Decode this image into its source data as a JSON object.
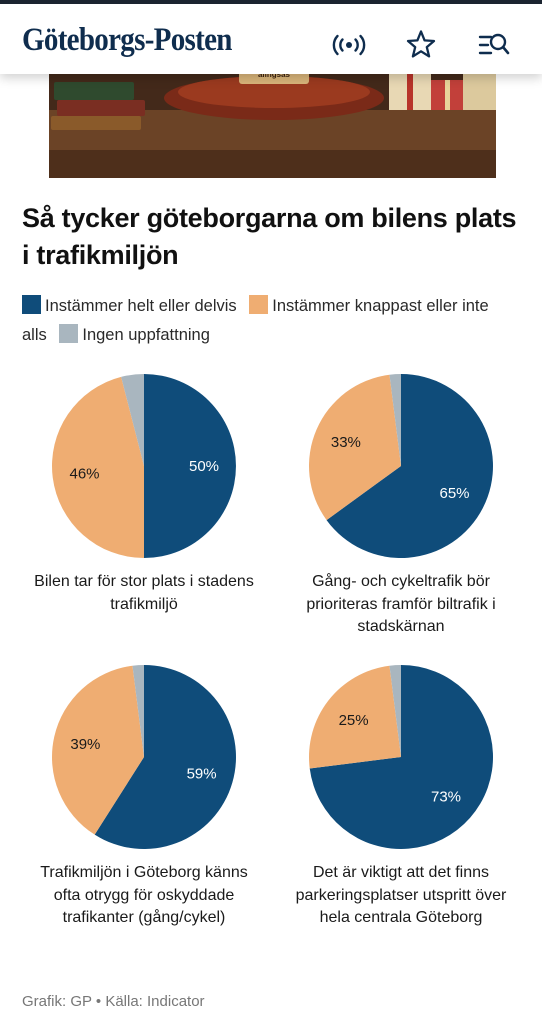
{
  "header": {
    "logo": "Göteborgs-Posten",
    "icons": [
      "live-radio-icon",
      "star-icon",
      "search-menu-icon"
    ]
  },
  "hero": {
    "sign_text": "alingsås"
  },
  "headline": "Så tycker göteborgarna om bilens plats i trafikmiljön",
  "legend": [
    {
      "label": "Instämmer helt eller delvis",
      "color": "#0f4c7a"
    },
    {
      "label": "Instämmer knappast eller inte alls",
      "color": "#efad72"
    },
    {
      "label": "Ingen uppfattning",
      "color": "#a9b6bf"
    }
  ],
  "chart_data": [
    {
      "type": "pie",
      "caption": "Bilen tar för stor plats i stadens trafikmiljö",
      "slices": [
        {
          "name": "Instämmer helt eller delvis",
          "value": 50,
          "label": "50%",
          "color": "#0f4c7a"
        },
        {
          "name": "Instämmer knappast eller inte alls",
          "value": 46,
          "label": "46%",
          "color": "#efad72"
        },
        {
          "name": "Ingen uppfattning",
          "value": 4,
          "label": "",
          "color": "#a9b6bf"
        }
      ]
    },
    {
      "type": "pie",
      "caption": "Gång- och cykeltrafik bör prioriteras framför biltrafik i stadskärnan",
      "slices": [
        {
          "name": "Instämmer helt eller delvis",
          "value": 65,
          "label": "65%",
          "color": "#0f4c7a"
        },
        {
          "name": "Instämmer knappast eller inte alls",
          "value": 33,
          "label": "33%",
          "color": "#efad72"
        },
        {
          "name": "Ingen uppfattning",
          "value": 2,
          "label": "",
          "color": "#a9b6bf"
        }
      ]
    },
    {
      "type": "pie",
      "caption": "Trafikmiljön i Göteborg känns ofta otrygg för oskyddade trafikanter (gång/cykel)",
      "slices": [
        {
          "name": "Instämmer helt eller delvis",
          "value": 59,
          "label": "59%",
          "color": "#0f4c7a"
        },
        {
          "name": "Instämmer knappast eller inte alls",
          "value": 39,
          "label": "39%",
          "color": "#efad72"
        },
        {
          "name": "Ingen uppfattning",
          "value": 2,
          "label": "",
          "color": "#a9b6bf"
        }
      ]
    },
    {
      "type": "pie",
      "caption": "Det är viktigt att det finns parkeringsplatser utspritt över hela centrala Göteborg",
      "slices": [
        {
          "name": "Instämmer helt eller delvis",
          "value": 73,
          "label": "73%",
          "color": "#0f4c7a"
        },
        {
          "name": "Instämmer knappast eller inte alls",
          "value": 25,
          "label": "25%",
          "color": "#efad72"
        },
        {
          "name": "Ingen uppfattning",
          "value": 2,
          "label": "",
          "color": "#a9b6bf"
        }
      ]
    }
  ],
  "source": "Grafik: GP • Källa: Indicator"
}
